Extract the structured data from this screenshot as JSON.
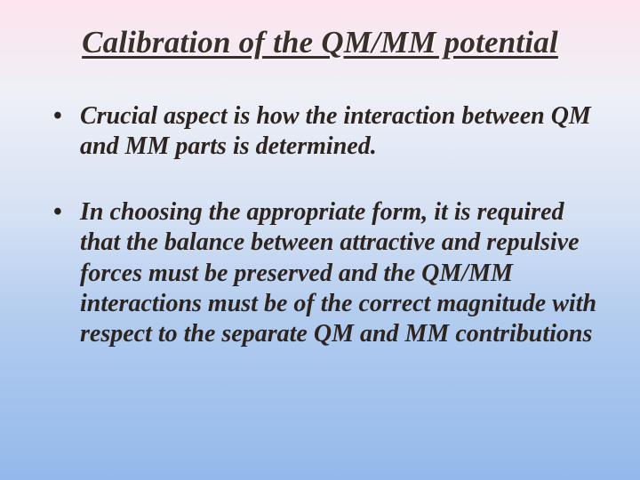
{
  "slide": {
    "title": "Calibration of the QM/MM potential",
    "bullets": [
      "Crucial aspect is how the interaction between QM and MM parts is determined.",
      "In choosing the appropriate form, it is required that the balance between attractive and repulsive forces must be preserved and the QM/MM interactions must be of the correct magnitude with respect to the separate QM and MM contributions"
    ],
    "style": {
      "background_gradient": [
        "#fde4ee",
        "#f5eaf2",
        "#eef0f7",
        "#d5e1f4",
        "#b4cdef",
        "#93b9eb"
      ],
      "title_fontsize": 35,
      "title_color": "#3a2f2a",
      "title_shadow_color": "#ffffff",
      "bullet_fontsize": 28,
      "bullet_color": "#2e241f",
      "font_family": "Times New Roman"
    }
  }
}
